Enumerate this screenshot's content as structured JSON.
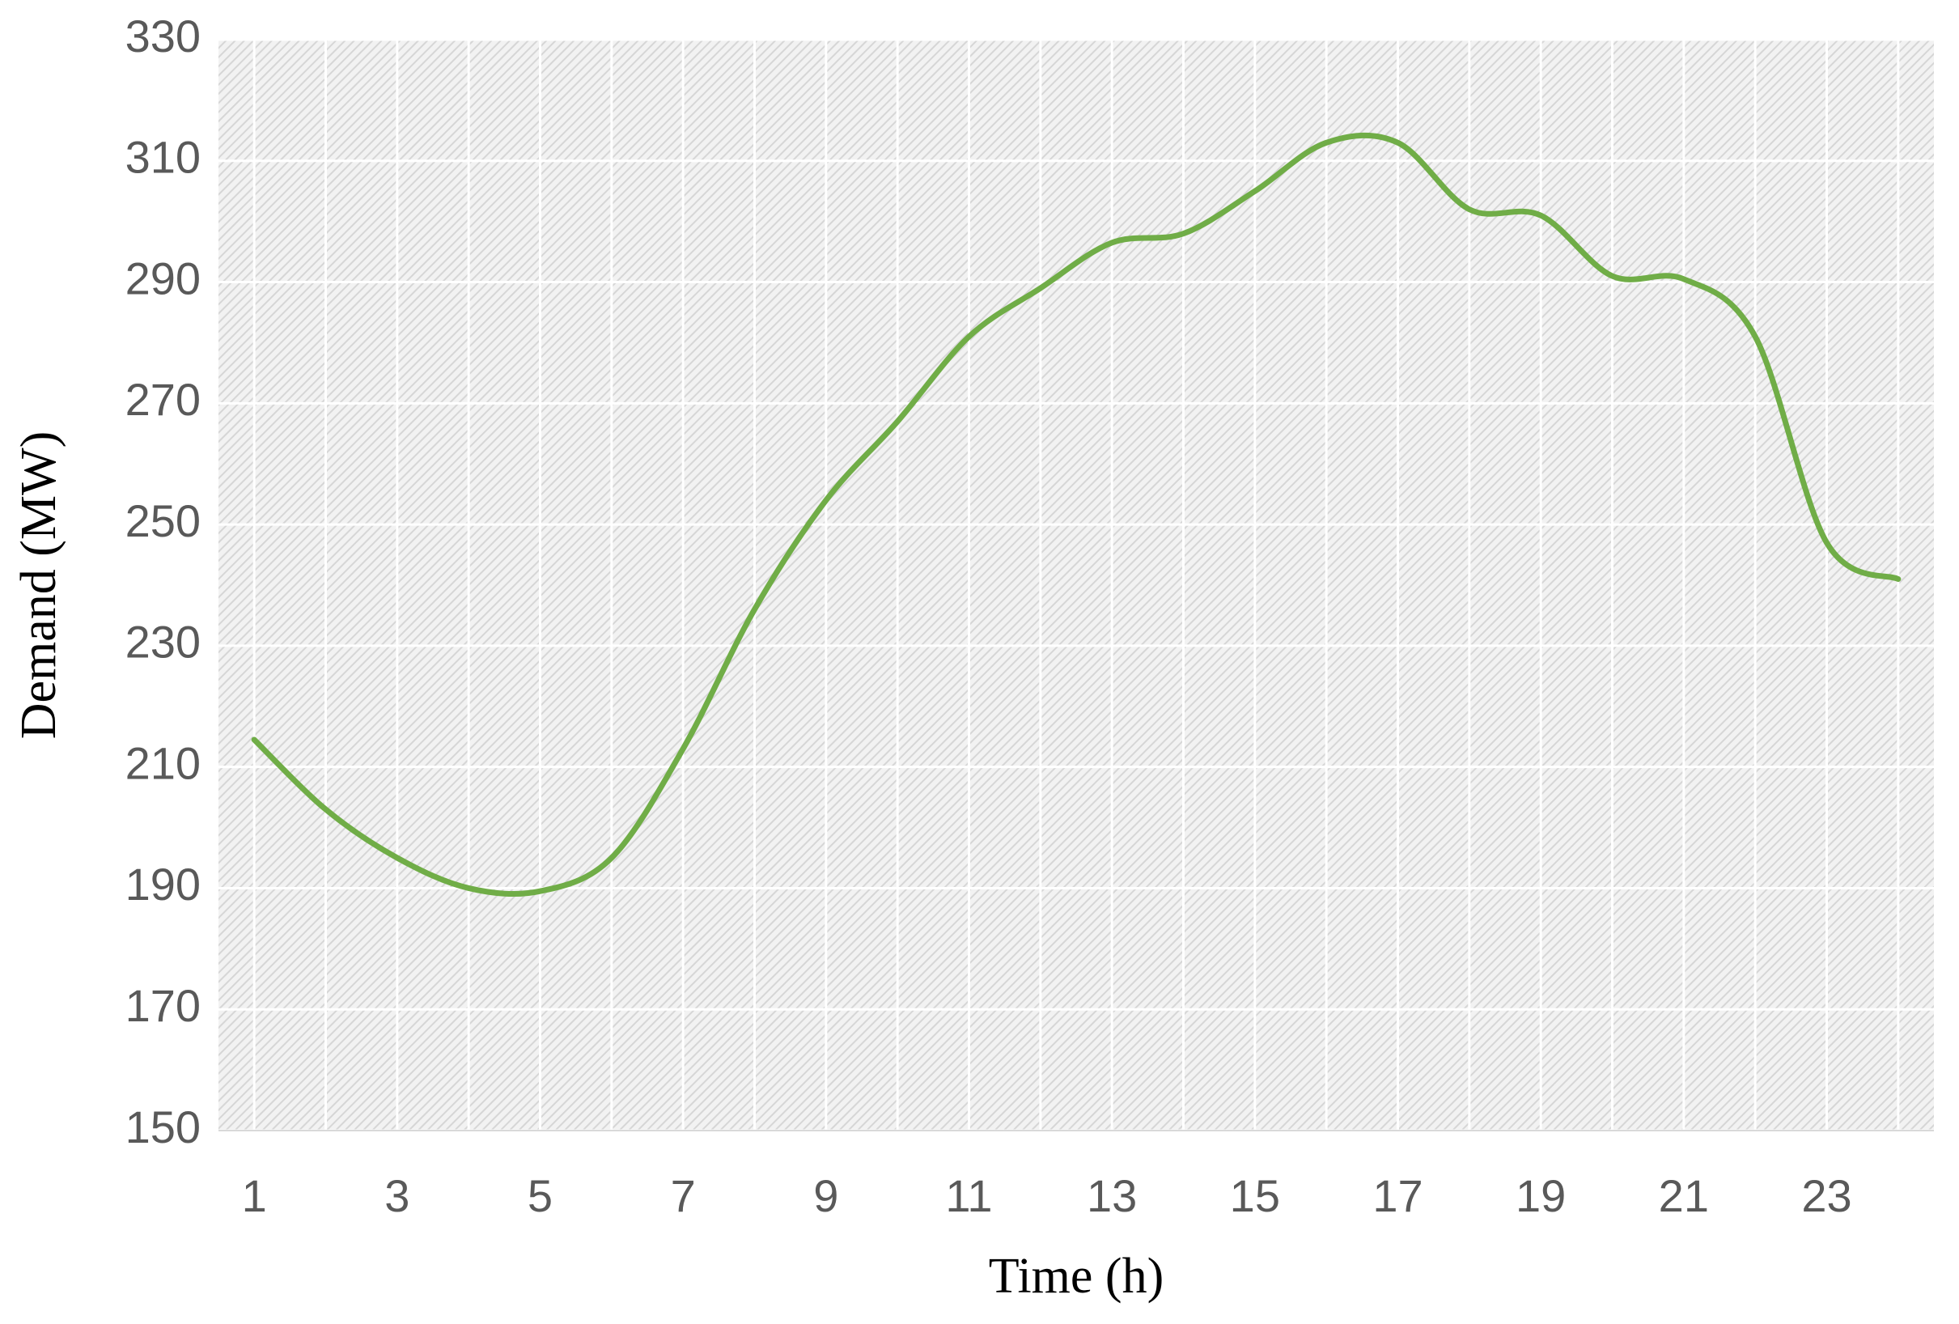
{
  "chart_data": {
    "type": "line",
    "x_label": "Time (h)",
    "y_label": "Demand (MW)",
    "categories": [
      1,
      null,
      3,
      null,
      5,
      null,
      7,
      null,
      9,
      null,
      11,
      null,
      13,
      null,
      15,
      null,
      17,
      null,
      19,
      null,
      21,
      null,
      23,
      null
    ],
    "series": [
      {
        "name": "Demand",
        "color": "#70ad47",
        "values": [
          214.5,
          203,
          195,
          190,
          189.5,
          195,
          213,
          236,
          254,
          267,
          281,
          289,
          296.5,
          298,
          305,
          313,
          313,
          302,
          301,
          291,
          290.5,
          281,
          247,
          241
        ]
      }
    ],
    "ylim": [
      150,
      330
    ],
    "yticks": [
      150,
      170,
      190,
      210,
      230,
      250,
      270,
      290,
      310,
      330
    ],
    "grid": true
  }
}
